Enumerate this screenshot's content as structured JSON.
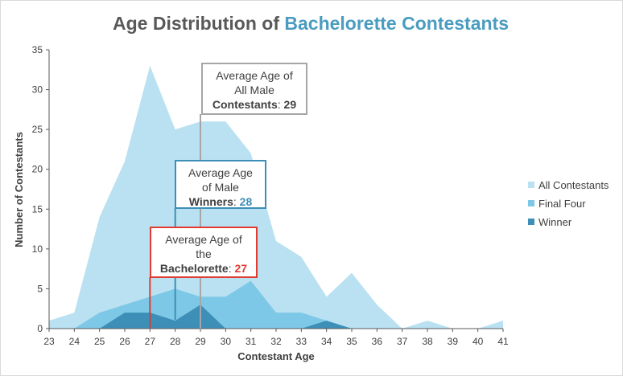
{
  "chart_data": {
    "type": "area",
    "title_part1": "Age Distribution of ",
    "title_part2": "Bachelorette Contestants",
    "title_colors": {
      "part1": "#595959",
      "part2": "#4a9cc0"
    },
    "xlabel": "Contestant Age",
    "ylabel": "Number of Contestants",
    "x": [
      23,
      24,
      25,
      26,
      27,
      28,
      29,
      30,
      31,
      32,
      33,
      34,
      35,
      36,
      37,
      38,
      39,
      40,
      41
    ],
    "ylim": [
      0,
      35
    ],
    "yticks": [
      0,
      5,
      10,
      15,
      20,
      25,
      30,
      35
    ],
    "grid": false,
    "legend_position": "right",
    "series": [
      {
        "name": "All Contestants",
        "color": "#b9e1f1",
        "values": [
          1,
          2,
          14,
          21,
          33,
          25,
          26,
          26,
          22,
          11,
          9,
          4,
          7,
          3,
          0,
          1,
          0,
          0,
          1
        ]
      },
      {
        "name": "Final Four",
        "color": "#7dc8e6",
        "values": [
          0,
          0,
          2,
          3,
          4,
          5,
          4,
          4,
          6,
          2,
          2,
          1,
          0,
          0,
          0,
          0,
          0,
          0,
          0
        ]
      },
      {
        "name": "Winner",
        "color": "#3d8fb8",
        "values": [
          0,
          0,
          0,
          2,
          2,
          1,
          3,
          0,
          0,
          0,
          0,
          1,
          0,
          0,
          0,
          0,
          0,
          0,
          0
        ]
      }
    ],
    "annotations": [
      {
        "x": 29,
        "line_color": "#a6a6a6",
        "text_lines": [
          "Average Age of",
          "All Male"
        ],
        "bold_label": "Contestants",
        "value": "29",
        "value_color": "#404040"
      },
      {
        "x": 28,
        "line_color": "#3d8fb8",
        "text_lines": [
          "Average Age",
          "of Male"
        ],
        "bold_label": "Winners",
        "value": "28",
        "value_color": "#3d8fb8"
      },
      {
        "x": 27,
        "line_color": "#e03c31",
        "text_lines": [
          "Average Age of",
          "the"
        ],
        "bold_label": "Bachelorette",
        "value": "27",
        "value_color": "#e03c31"
      }
    ]
  }
}
